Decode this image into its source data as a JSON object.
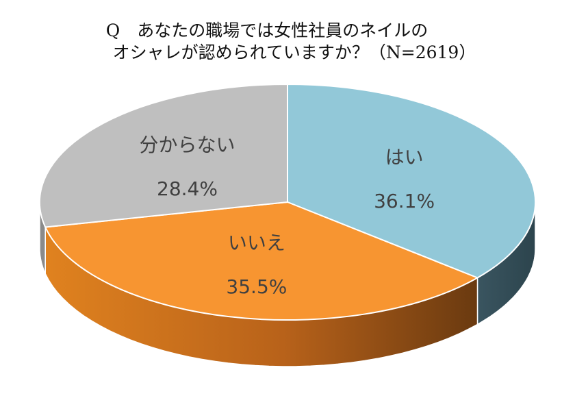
{
  "chart_data": {
    "type": "pie",
    "style": "3d-tilted",
    "title_line1": "Q　あなたの職場では女性社員のネイルの",
    "title_line2": "オシャレが認められていますか？（N=2619）",
    "slices": [
      {
        "label": "はい",
        "value": 36.1,
        "display": "36.1%",
        "color": "#92C8D8",
        "side": "#35505A"
      },
      {
        "label": "いいえ",
        "value": 35.5,
        "display": "35.5%",
        "color": "#F79531",
        "side": "#C46A1A"
      },
      {
        "label": "分からない",
        "value": 28.4,
        "display": "28.4%",
        "color": "#BFBFBF",
        "side": "#8A8A8A"
      }
    ]
  }
}
